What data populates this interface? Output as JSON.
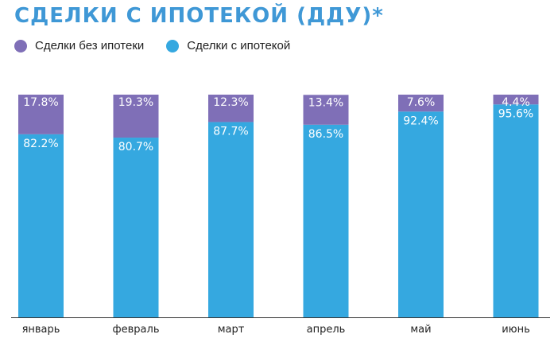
{
  "title": "СДЕЛКИ С ИПОТЕКОЙ (ДДУ)*",
  "chart_data": {
    "type": "bar",
    "stacked": true,
    "title": "СДЕЛКИ С ИПОТЕКОЙ (ДДУ)*",
    "categories": [
      "январь",
      "февраль",
      "март",
      "апрель",
      "май",
      "июнь"
    ],
    "series": [
      {
        "name": "Сделки с ипотекой",
        "color": "#35a8e0",
        "values": [
          82.2,
          80.7,
          87.7,
          86.5,
          92.4,
          95.6
        ],
        "labels": [
          "82.2%",
          "80.7%",
          "87.7%",
          "86.5%",
          "92.4%",
          "95.6%"
        ]
      },
      {
        "name": "Сделки без ипотеки",
        "color": "#7f6fb7",
        "values": [
          17.8,
          19.3,
          12.3,
          13.4,
          7.6,
          4.4
        ],
        "labels": [
          "17.8%",
          "19.3%",
          "12.3%",
          "13.4%",
          "7.6%",
          "4.4%"
        ]
      }
    ],
    "ylim": [
      0,
      100
    ],
    "grid": false,
    "legend_position": "top-left"
  },
  "colors": {
    "title": "#3f98d6",
    "axis": "#333333",
    "label_text": "#ffffff"
  }
}
